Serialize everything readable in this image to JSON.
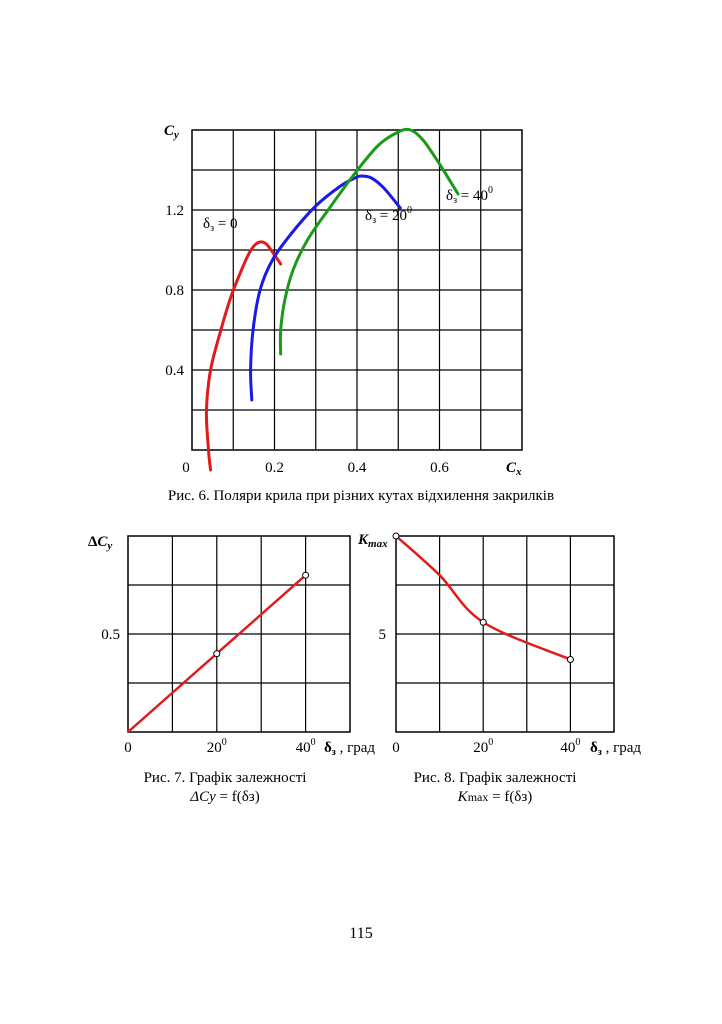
{
  "page_number": "115",
  "captions": {
    "fig6": "Рис. 6. Поляри крила при різних кутах відхилення закрилків",
    "fig7_line1": "Рис. 7. Графік залежності",
    "fig7_line2_prefix": "ΔCy",
    "fig7_line2_suffix": " = f(δз)",
    "fig8_line1": "Рис. 8. Графік залежності",
    "fig8_line2_prefix": "K",
    "fig8_line2_mid": "max",
    "fig8_line2_suffix": " = f(δз)"
  },
  "chart_data": [
    {
      "id": "fig6",
      "type": "line",
      "title": "Рис. 6. Поляри крила при різних кутах відхилення закрилків",
      "xlabel": "Cx",
      "ylabel": "Cy",
      "xlim": [
        0,
        0.8
      ],
      "ylim": [
        0,
        1.6
      ],
      "x_ticks": [
        0.2,
        0.4,
        0.6
      ],
      "x_tick_labels": [
        "0",
        "0.2",
        "0.4",
        "0.6"
      ],
      "y_ticks": [
        0.4,
        0.8,
        1.2
      ],
      "y_tick_labels": [
        "0.4",
        "0.8",
        "1.2"
      ],
      "grid": true,
      "series": [
        {
          "name": "δз = 0",
          "label_base": "δ",
          "label_sub": "з",
          "label_eq": " = 0",
          "label_sup": "",
          "color": "#e01b1b",
          "x": [
            0.045,
            0.04,
            0.035,
            0.045,
            0.07,
            0.095,
            0.12,
            0.135,
            0.15,
            0.165,
            0.18,
            0.195,
            0.215
          ],
          "y": [
            -0.1,
            0.0,
            0.2,
            0.4,
            0.6,
            0.77,
            0.9,
            0.97,
            1.02,
            1.04,
            1.03,
            0.99,
            0.93
          ]
        },
        {
          "name": "δз = 20°",
          "label_base": "δ",
          "label_sub": "з",
          "label_eq": " = 20",
          "label_sup": "0",
          "color": "#1a1ae6",
          "x": [
            0.145,
            0.142,
            0.148,
            0.165,
            0.195,
            0.24,
            0.3,
            0.36,
            0.395,
            0.41,
            0.435,
            0.465,
            0.505
          ],
          "y": [
            0.25,
            0.4,
            0.6,
            0.8,
            0.95,
            1.08,
            1.22,
            1.32,
            1.36,
            1.37,
            1.36,
            1.31,
            1.21
          ]
        },
        {
          "name": "δз = 40°",
          "label_base": "δ",
          "label_sub": "з",
          "label_eq": " = 40",
          "label_sup": "0",
          "color": "#1a9a1a",
          "x": [
            0.215,
            0.215,
            0.225,
            0.245,
            0.28,
            0.33,
            0.39,
            0.45,
            0.5,
            0.53,
            0.56,
            0.6,
            0.645
          ],
          "y": [
            0.48,
            0.6,
            0.75,
            0.9,
            1.05,
            1.2,
            1.37,
            1.52,
            1.59,
            1.6,
            1.55,
            1.43,
            1.28
          ]
        }
      ]
    },
    {
      "id": "fig7",
      "type": "line",
      "title": "Рис. 7. Графік залежності ΔCy = f(δз)",
      "ylabel": "ΔCy",
      "xlabel": "δз , град",
      "xlim": [
        0,
        50
      ],
      "ylim": [
        0,
        1.0
      ],
      "x_tick_labels": [
        "0",
        "20",
        "40"
      ],
      "x_tick_sup": [
        "",
        "0",
        "0"
      ],
      "y_tick_labels": [
        "0.5"
      ],
      "grid": true,
      "series": [
        {
          "name": "ΔCy",
          "color": "#e01b1b",
          "x": [
            0,
            20,
            40
          ],
          "y": [
            0,
            0.4,
            0.8
          ],
          "markers": [
            false,
            true,
            true
          ]
        }
      ]
    },
    {
      "id": "fig8",
      "type": "line",
      "title": "Рис. 8. Графік залежності Kmax = f(δз)",
      "ylabel": "Kmax",
      "xlabel": "δз , град",
      "xlim": [
        0,
        50
      ],
      "ylim": [
        0,
        10
      ],
      "x_tick_labels": [
        "0",
        "20",
        "40"
      ],
      "x_tick_sup": [
        "",
        "0",
        "0"
      ],
      "y_tick_labels": [
        "5"
      ],
      "grid": true,
      "series": [
        {
          "name": "Kmax",
          "color": "#e01b1b",
          "x": [
            0,
            10,
            20,
            40
          ],
          "y": [
            10,
            8,
            5.6,
            3.7
          ],
          "markers": [
            true,
            false,
            true,
            true
          ]
        }
      ]
    }
  ]
}
